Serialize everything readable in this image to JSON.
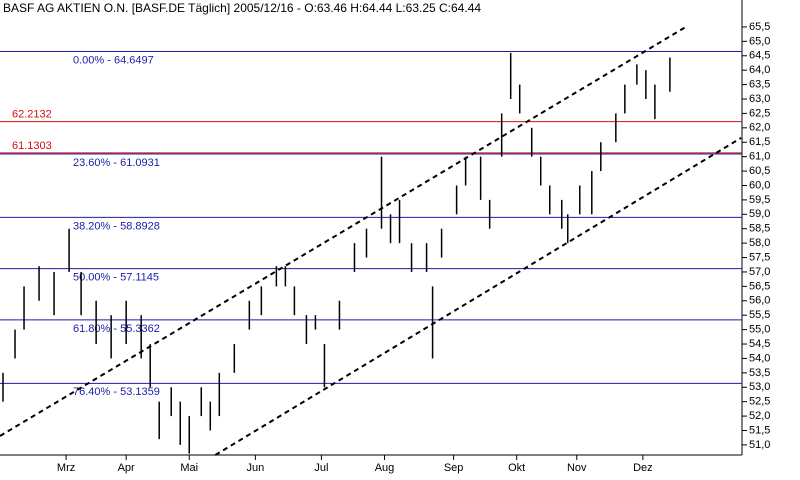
{
  "chart_data": {
    "type": "hilo",
    "title": "BASF AG AKTIEN O.N. [BASF.DE  Täglich] 2005/12/16 - O:63.46 H:64.44 L:63.25 C:64.44",
    "color": "#000000",
    "x": [
      1,
      5,
      8,
      13,
      18,
      23,
      27,
      32,
      37,
      42,
      47,
      50,
      53,
      57,
      60,
      63,
      67,
      70,
      73,
      78,
      83,
      87,
      92,
      95,
      98,
      102,
      105,
      108,
      113,
      118,
      122,
      127,
      130,
      133,
      137,
      142,
      144,
      147,
      152,
      155,
      160,
      163,
      167,
      170,
      173,
      177,
      180,
      183,
      187,
      189,
      193,
      197,
      200,
      205,
      208,
      212,
      215,
      218,
      223
    ],
    "high": [
      53.5,
      55,
      56.5,
      57.2,
      57,
      58.5,
      57,
      56,
      55.5,
      56,
      55.5,
      54.5,
      52.5,
      53,
      52.5,
      52,
      53,
      52.5,
      53.5,
      54.5,
      56,
      56.5,
      57.2,
      57.2,
      56.5,
      55.5,
      55.5,
      54.5,
      56,
      58,
      58.5,
      61,
      59,
      59.5,
      58,
      58,
      56.5,
      58.5,
      60,
      61,
      61,
      59.5,
      62.5,
      64.6,
      63.5,
      62,
      61,
      60,
      59.5,
      59,
      60,
      60.5,
      61.5,
      62.5,
      63.5,
      64.2,
      64,
      63.5,
      64.44
    ],
    "low": [
      52.5,
      54,
      55,
      56,
      55.5,
      57,
      55.5,
      54.5,
      54,
      54.5,
      54,
      53,
      51.2,
      52,
      51,
      50.7,
      52,
      51.5,
      52,
      53.5,
      55,
      55.5,
      56.5,
      56.5,
      55.5,
      54.5,
      55,
      53,
      55,
      57,
      57.5,
      58.5,
      58,
      58,
      57,
      57,
      54,
      57.5,
      59,
      60,
      59.5,
      58.5,
      61,
      63,
      62.5,
      61,
      60,
      59,
      58.5,
      58,
      59,
      59,
      60.5,
      61.5,
      62.5,
      63.5,
      63,
      62.3,
      63.25
    ],
    "xlim": [
      0,
      247
    ],
    "xticks": [
      {
        "value": 22,
        "label": "Mrz"
      },
      {
        "value": 42,
        "label": "Apr"
      },
      {
        "value": 63,
        "label": "Mai"
      },
      {
        "value": 85,
        "label": "Jun"
      },
      {
        "value": 107,
        "label": "Jul"
      },
      {
        "value": 128,
        "label": "Aug"
      },
      {
        "value": 151,
        "label": "Sep"
      },
      {
        "value": 172,
        "label": "Okt"
      },
      {
        "value": 192,
        "label": "Nov"
      },
      {
        "value": 214,
        "label": "Dez"
      }
    ],
    "ylim": [
      50.65,
      65.81
    ],
    "yticks": [
      {
        "value": 51,
        "label": "51,0"
      },
      {
        "value": 51.5,
        "label": "51,5"
      },
      {
        "value": 52,
        "label": "52,0"
      },
      {
        "value": 52.5,
        "label": "52,5"
      },
      {
        "value": 53,
        "label": "53,0"
      },
      {
        "value": 53.5,
        "label": "53,5"
      },
      {
        "value": 54,
        "label": "54,0"
      },
      {
        "value": 54.5,
        "label": "54,5"
      },
      {
        "value": 55,
        "label": "55,0"
      },
      {
        "value": 55.5,
        "label": "55,5"
      },
      {
        "value": 56,
        "label": "56,0"
      },
      {
        "value": 56.5,
        "label": "56,5"
      },
      {
        "value": 57,
        "label": "57,0"
      },
      {
        "value": 57.5,
        "label": "57,5"
      },
      {
        "value": 58,
        "label": "58,0"
      },
      {
        "value": 58.5,
        "label": "58,5"
      },
      {
        "value": 59,
        "label": "59,0"
      },
      {
        "value": 59.5,
        "label": "59,5"
      },
      {
        "value": 60,
        "label": "60,0"
      },
      {
        "value": 60.5,
        "label": "60,5"
      },
      {
        "value": 61,
        "label": "61,0"
      },
      {
        "value": 61.5,
        "label": "61,5"
      },
      {
        "value": 62,
        "label": "62,0"
      },
      {
        "value": 62.5,
        "label": "62,5"
      },
      {
        "value": 63,
        "label": "63,0"
      },
      {
        "value": 63.5,
        "label": "63,5"
      },
      {
        "value": 64,
        "label": "64,0"
      },
      {
        "value": 64.5,
        "label": "64,5"
      },
      {
        "value": 65,
        "label": "65,0"
      },
      {
        "value": 65.5,
        "label": "65,5"
      }
    ],
    "fib_levels": [
      {
        "value": 64.6497,
        "label": "0.00% - 64.6497"
      },
      {
        "value": 61.0931,
        "label": "23.60% - 61.0931"
      },
      {
        "value": 58.8928,
        "label": "38.20% - 58.8928"
      },
      {
        "value": 57.1145,
        "label": "50.00% - 57.1145"
      },
      {
        "value": 55.3362,
        "label": "61.80% - 55.3362"
      },
      {
        "value": 53.1359,
        "label": "76.40% - 53.1359"
      }
    ],
    "fib_color": "#1c1ca8",
    "red_levels": [
      62.2132,
      61.1303
    ],
    "red_color": "#d01010",
    "trendlines": [
      {
        "x": [
          0,
          228.3
        ],
        "y": [
          51.31,
          65.5
        ]
      },
      {
        "x": [
          71.7,
          246.7
        ],
        "y": [
          50.65,
          61.65
        ]
      }
    ]
  }
}
